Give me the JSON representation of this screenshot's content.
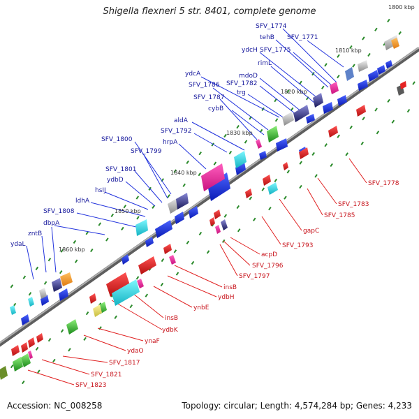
{
  "header": {
    "title": "Shigella flexneri 5 str. 8401, complete genome"
  },
  "footer": {
    "accession": "Accession: NC_008258",
    "topology": "Topology: circular; Length: 4,574,284 bp; Genes: 4,233"
  },
  "colors": {
    "backbone": "#8c8c8c",
    "forward_feature": "#1b2ee6",
    "reverse_feature": "#e31e1e",
    "label_top": "#15179c",
    "label_bottom": "#c8141c",
    "dotted_marks": "#2a8a2a"
  },
  "kbp_ticks": [
    "1800 kbp",
    "1810 kbp",
    "1820 kbp",
    "1830 kbp",
    "1840 kbp",
    "1850 kbp",
    "1860 kbp"
  ],
  "top_labels": [
    "SFV_1774",
    "tehB",
    "SFV_1771",
    "ydcH",
    "SFV_1775",
    "rimL",
    "ydcA",
    "mdoD",
    "SFV_1786",
    "SFV_1782",
    "trg",
    "SFV_1787",
    "cybB",
    "aldA",
    "SFV_1792",
    "hrpA",
    "SFV_1800",
    "SFV_1799",
    "SFV_1801",
    "ydbD",
    "hsIJ",
    "ldhA",
    "SFV_1808",
    "dbpA",
    "zntB",
    "ydaL"
  ],
  "bottom_labels": [
    "SFV_1778",
    "SFV_1783",
    "SFV_1785",
    "gapC",
    "SFV_1793",
    "acpD",
    "SFV_1796",
    "SFV_1797",
    "insB",
    "ydbH",
    "ynbE",
    "insB",
    "ydbK",
    "ynaF",
    "ydaO",
    "SFV_1817",
    "SFV_1821",
    "SFV_1823"
  ]
}
